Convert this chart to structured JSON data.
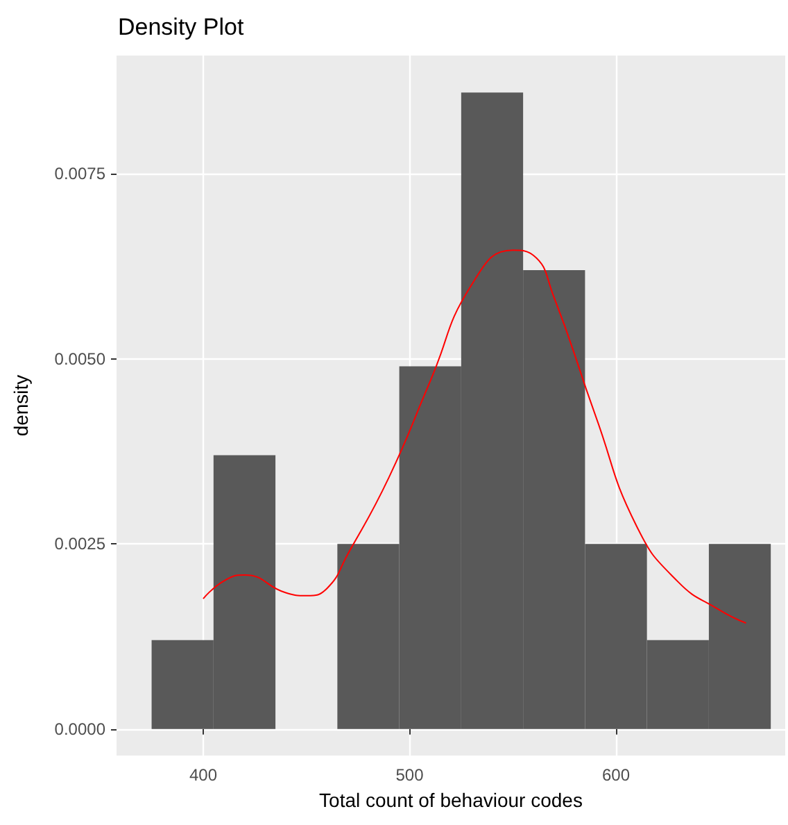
{
  "chart_data": {
    "type": "histogram",
    "title": "Density Plot",
    "xlabel": "Total count of behaviour codes",
    "ylabel": "density",
    "bins": [
      375,
      405,
      435,
      465,
      495,
      525,
      555,
      585,
      615,
      645,
      675
    ],
    "series": [
      {
        "color": "#595959",
        "values": [
          0.0012,
          0.0037,
          0,
          0.0025,
          0.0049,
          0.0086,
          0.0062,
          0.0025,
          0.0012,
          0.0025
        ]
      },
      {
        "type": "line",
        "color": "#ff0000",
        "x": [
          400,
          410,
          420,
          440,
          450,
          460,
          470,
          490,
          510,
          530,
          550,
          560,
          570,
          590,
          610,
          630,
          650,
          663
        ],
        "values": [
          0.00176,
          0.002,
          0.00208,
          0.00184,
          0.0018,
          0.0019,
          0.00236,
          0.0034,
          0.0047,
          0.006,
          0.00647,
          0.0064,
          0.00583,
          0.00424,
          0.00274,
          0.00199,
          0.00161,
          0.00143
        ]
      }
    ],
    "xlim": [
      358,
      682
    ],
    "ylim": [
      -0.00036,
      0.0091
    ],
    "xticks": [
      400,
      500,
      600
    ],
    "yticks": [
      {
        "value": 0,
        "label": "0.0000"
      },
      {
        "value": 0.0025,
        "label": "0.0025"
      },
      {
        "value": 0.005,
        "label": "0.0050"
      },
      {
        "value": 0.0075,
        "label": "0.0075"
      }
    ],
    "grid": true
  }
}
